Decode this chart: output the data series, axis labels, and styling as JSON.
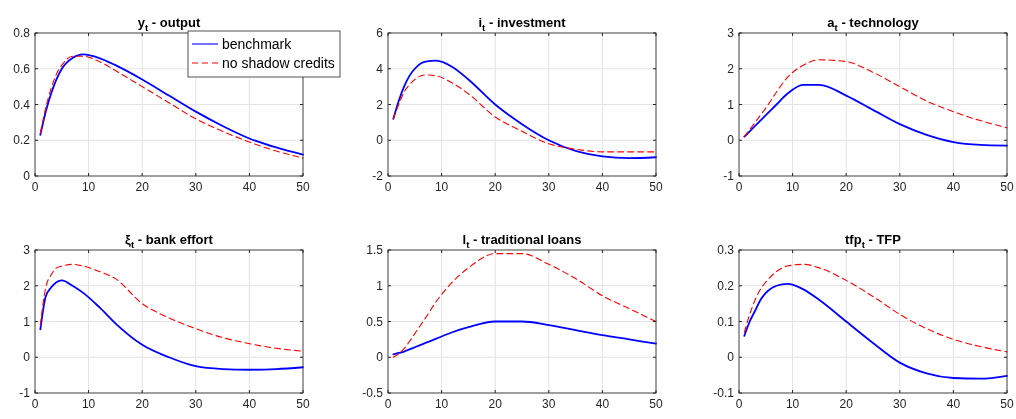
{
  "chart_data": [
    {
      "type": "line",
      "title": "y$_{t}$ - output",
      "x": [
        1,
        2,
        3,
        4,
        5,
        7,
        9,
        12,
        15,
        20,
        25,
        30,
        35,
        40,
        45,
        50
      ],
      "xlim": [
        0,
        50
      ],
      "xticks": [
        0,
        10,
        20,
        30,
        40,
        50
      ],
      "ylim": [
        0,
        0.8
      ],
      "yticks": [
        0,
        0.2,
        0.4,
        0.6,
        0.8
      ],
      "grid": true,
      "legend": "top right",
      "series": [
        {
          "name": "benchmark",
          "color": "#0000ff",
          "line_style": "solid",
          "values": [
            0.23,
            0.36,
            0.46,
            0.54,
            0.6,
            0.66,
            0.68,
            0.66,
            0.62,
            0.54,
            0.45,
            0.36,
            0.28,
            0.21,
            0.16,
            0.12
          ]
        },
        {
          "name": "no shadow credits",
          "color": "#ff0000",
          "line_style": "dashed",
          "values": [
            0.24,
            0.38,
            0.49,
            0.57,
            0.62,
            0.67,
            0.67,
            0.64,
            0.59,
            0.5,
            0.41,
            0.32,
            0.25,
            0.19,
            0.14,
            0.1
          ]
        }
      ]
    },
    {
      "type": "line",
      "title": "i$_{t}$ - investment",
      "x": [
        1,
        2,
        3,
        4,
        5,
        7,
        9,
        12,
        15,
        20,
        25,
        30,
        35,
        40,
        45,
        50
      ],
      "xlim": [
        0,
        50
      ],
      "xticks": [
        0,
        10,
        20,
        30,
        40,
        50
      ],
      "ylim": [
        -2,
        6
      ],
      "yticks": [
        -2,
        0,
        2,
        4,
        6
      ],
      "grid": true,
      "series": [
        {
          "color": "#0000ff",
          "line_style": "solid",
          "values": [
            1.2,
            2.2,
            3.0,
            3.6,
            4.0,
            4.4,
            4.45,
            4.1,
            3.4,
            2.0,
            0.9,
            0.0,
            -0.6,
            -0.9,
            -1.0,
            -0.95
          ]
        },
        {
          "color": "#ff0000",
          "line_style": "dashed",
          "values": [
            1.2,
            2.0,
            2.7,
            3.1,
            3.4,
            3.65,
            3.6,
            3.2,
            2.6,
            1.3,
            0.5,
            -0.2,
            -0.5,
            -0.65,
            -0.65,
            -0.65
          ]
        }
      ]
    },
    {
      "type": "line",
      "title": "a$_{t}$ - technology",
      "x": [
        1,
        2,
        3,
        4,
        5,
        7,
        9,
        12,
        15,
        20,
        25,
        30,
        35,
        40,
        45,
        50
      ],
      "xlim": [
        0,
        50
      ],
      "xticks": [
        0,
        10,
        20,
        30,
        40,
        50
      ],
      "ylim": [
        -1,
        3
      ],
      "yticks": [
        -1,
        0,
        1,
        2,
        3
      ],
      "grid": true,
      "series": [
        {
          "color": "#0000ff",
          "line_style": "solid",
          "values": [
            0.1,
            0.25,
            0.4,
            0.55,
            0.7,
            1.0,
            1.3,
            1.55,
            1.55,
            1.25,
            0.85,
            0.45,
            0.15,
            -0.05,
            -0.13,
            -0.15
          ]
        },
        {
          "color": "#ff0000",
          "line_style": "dashed",
          "values": [
            0.1,
            0.3,
            0.5,
            0.7,
            0.9,
            1.35,
            1.75,
            2.1,
            2.25,
            2.2,
            1.9,
            1.5,
            1.1,
            0.8,
            0.55,
            0.35
          ]
        }
      ]
    },
    {
      "type": "line",
      "title": "ξ$_{t}$ - bank effort",
      "x": [
        1,
        2,
        3,
        4,
        5,
        7,
        9,
        12,
        15,
        20,
        25,
        30,
        35,
        40,
        45,
        50
      ],
      "xlim": [
        0,
        50
      ],
      "xticks": [
        0,
        10,
        20,
        30,
        40,
        50
      ],
      "ylim": [
        -1,
        3
      ],
      "yticks": [
        -1,
        0,
        1,
        2,
        3
      ],
      "grid": true,
      "series": [
        {
          "color": "#0000ff",
          "line_style": "solid",
          "values": [
            0.78,
            1.7,
            1.95,
            2.1,
            2.15,
            2.0,
            1.8,
            1.4,
            0.95,
            0.35,
            0.0,
            -0.25,
            -0.33,
            -0.35,
            -0.33,
            -0.28
          ]
        },
        {
          "color": "#ff0000",
          "line_style": "dashed",
          "values": [
            0.9,
            1.95,
            2.3,
            2.5,
            2.55,
            2.6,
            2.55,
            2.4,
            2.2,
            1.5,
            1.1,
            0.8,
            0.55,
            0.38,
            0.25,
            0.17
          ]
        }
      ]
    },
    {
      "type": "line",
      "title": "l$_{t}$ - traditional loans",
      "x": [
        1,
        2,
        3,
        4,
        5,
        7,
        9,
        12,
        15,
        20,
        25,
        30,
        35,
        40,
        45,
        50
      ],
      "xlim": [
        0,
        50
      ],
      "xticks": [
        0,
        10,
        20,
        30,
        40,
        50
      ],
      "ylim": [
        -0.5,
        1.5
      ],
      "yticks": [
        -0.5,
        0,
        0.5,
        1,
        1.5
      ],
      "grid": true,
      "series": [
        {
          "color": "#0000ff",
          "line_style": "solid",
          "values": [
            0.04,
            0.06,
            0.08,
            0.11,
            0.14,
            0.2,
            0.26,
            0.35,
            0.42,
            0.5,
            0.5,
            0.45,
            0.38,
            0.31,
            0.25,
            0.19
          ]
        },
        {
          "color": "#ff0000",
          "line_style": "dashed",
          "values": [
            0,
            0.05,
            0.12,
            0.22,
            0.33,
            0.55,
            0.78,
            1.05,
            1.25,
            1.45,
            1.45,
            1.3,
            1.1,
            0.86,
            0.68,
            0.5
          ]
        }
      ]
    },
    {
      "type": "line",
      "title": "tfp$_{t}$ - TFP",
      "x": [
        1,
        2,
        3,
        4,
        5,
        7,
        9,
        12,
        15,
        20,
        25,
        30,
        35,
        40,
        45,
        50
      ],
      "xlim": [
        0,
        50
      ],
      "xticks": [
        0,
        10,
        20,
        30,
        40,
        50
      ],
      "ylim": [
        -0.1,
        0.3
      ],
      "yticks": [
        -0.1,
        0,
        0.1,
        0.2,
        0.3
      ],
      "grid": true,
      "series": [
        {
          "color": "#0000ff",
          "line_style": "solid",
          "values": [
            0.06,
            0.1,
            0.13,
            0.16,
            0.18,
            0.2,
            0.205,
            0.19,
            0.16,
            0.1,
            0.04,
            -0.015,
            -0.045,
            -0.058,
            -0.06,
            -0.052
          ]
        },
        {
          "color": "#ff0000",
          "line_style": "dashed",
          "values": [
            0.07,
            0.12,
            0.16,
            0.19,
            0.21,
            0.24,
            0.255,
            0.26,
            0.25,
            0.215,
            0.17,
            0.12,
            0.08,
            0.05,
            0.03,
            0.015
          ]
        }
      ]
    }
  ]
}
